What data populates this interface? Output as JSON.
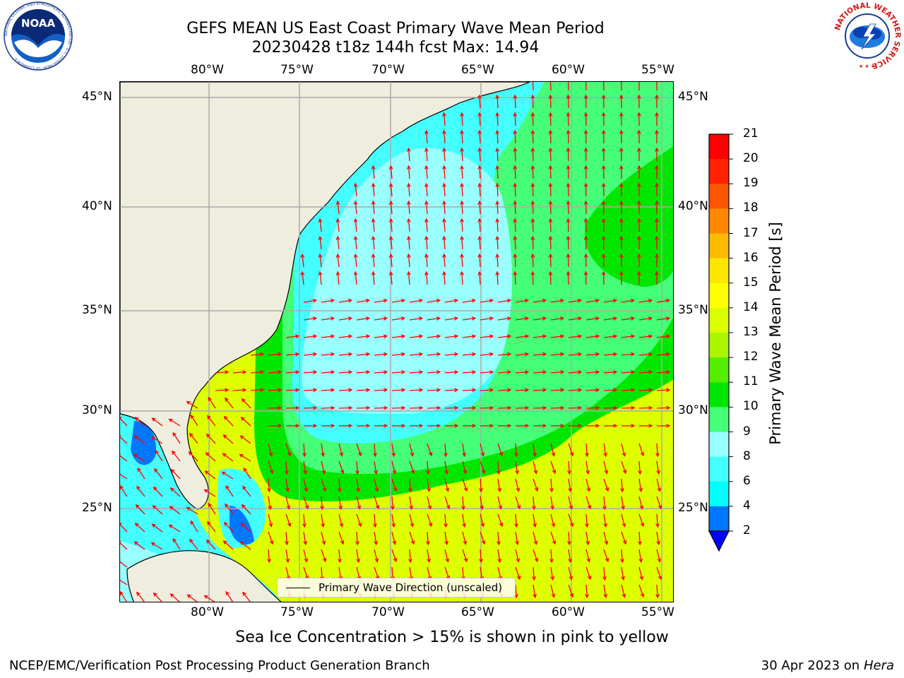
{
  "header": {
    "title_line1": "GEFS MEAN US East Coast Primary Wave Mean Period",
    "title_line2": "20230428 t18z 144h fcst   Max: 14.94"
  },
  "logos": {
    "noaa_text": "NOAA",
    "noaa_ring_text": "NATIONAL OCEANIC AND ATMOSPHERIC ADMINISTRATION · U.S. DEPARTMENT OF COMMERCE",
    "nws_ring_text": "NATIONAL WEATHER SERVICE"
  },
  "map": {
    "lon_labels": [
      "80°W",
      "75°W",
      "70°W",
      "65°W",
      "60°W",
      "55°W"
    ],
    "lat_labels": [
      "45°N",
      "40°N",
      "35°N",
      "30°N",
      "25°N"
    ],
    "legend_label": "Primary Wave Direction (unscaled)",
    "land_color": "#efedde",
    "arrow_color": "#ff0000"
  },
  "colorbar": {
    "label": "Primary Wave Mean Period [s]",
    "ticks": [
      "2",
      "4",
      "6",
      "8",
      "9",
      "10",
      "11",
      "12",
      "13",
      "14",
      "15",
      "16",
      "17",
      "18",
      "19",
      "20",
      "21"
    ],
    "colors": [
      "#0000ff",
      "#0077ff",
      "#00ffff",
      "#44ffff",
      "#99ffff",
      "#44ff77",
      "#00e600",
      "#55ee00",
      "#aaf500",
      "#d9ff00",
      "#ffff00",
      "#ffe600",
      "#ffbb00",
      "#ff8800",
      "#ff5500",
      "#ff2200",
      "#ff0000"
    ]
  },
  "footer": {
    "note": "Sea Ice Concentration > 15% is shown in pink to yellow",
    "left": "NCEP/EMC/Verification Post Processing Product Generation Branch",
    "right_date": "30 Apr 2023 on ",
    "right_machine": "Hera"
  }
}
